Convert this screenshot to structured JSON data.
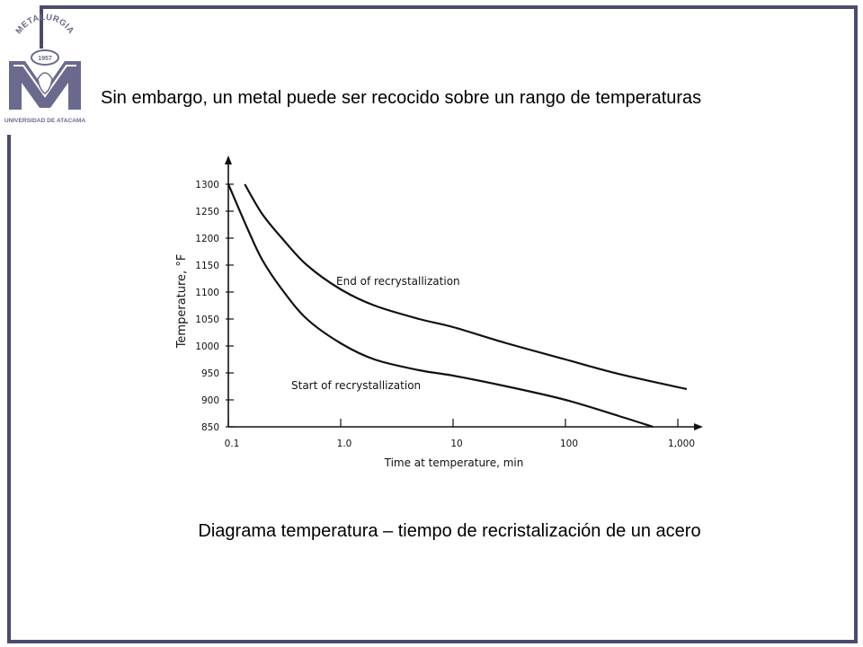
{
  "slide": {
    "heading": "Sin embargo, un metal puede ser recocido sobre un rango de temperaturas",
    "caption": "Diagrama temperatura – tiempo de recristalización de un acero"
  },
  "logo": {
    "arc_text": "METALURGIA",
    "year": "1957",
    "institution": "UNIVERSIDAD DE ATACAMA",
    "color": "#6a6a8e"
  },
  "frame_color": "#4b4b6e",
  "chart_data": {
    "type": "line",
    "title": "",
    "xlabel": "Time at temperature, min",
    "ylabel": "Temperature, °F",
    "x_scale": "log",
    "xlim": [
      0.1,
      1000
    ],
    "ylim": [
      850,
      1300
    ],
    "x_ticks": [
      0.1,
      1,
      10,
      100,
      1000
    ],
    "x_tick_labels": [
      "0.1",
      "1.0",
      "10",
      "100",
      "1,000"
    ],
    "y_ticks": [
      850,
      900,
      950,
      1000,
      1050,
      1100,
      1150,
      1200,
      1250,
      1300
    ],
    "y_tick_labels": [
      "850",
      "900",
      "950",
      "1000",
      "1050",
      "1100",
      "1150",
      "1200",
      "1250",
      "1300"
    ],
    "grid": false,
    "legend": "none",
    "series": [
      {
        "name": "End of recrystallization",
        "x": [
          0.14,
          0.2,
          0.3,
          0.5,
          1,
          2,
          5,
          10,
          30,
          100,
          300,
          1200
        ],
        "y": [
          1300,
          1245,
          1200,
          1150,
          1105,
          1075,
          1050,
          1035,
          1005,
          975,
          948,
          920
        ]
      },
      {
        "name": "Start of recrystallization",
        "x": [
          0.1,
          0.15,
          0.2,
          0.3,
          0.5,
          1,
          2,
          5,
          10,
          30,
          100,
          300,
          600
        ],
        "y": [
          1300,
          1215,
          1160,
          1105,
          1050,
          1005,
          975,
          955,
          945,
          925,
          900,
          870,
          850
        ]
      }
    ]
  }
}
